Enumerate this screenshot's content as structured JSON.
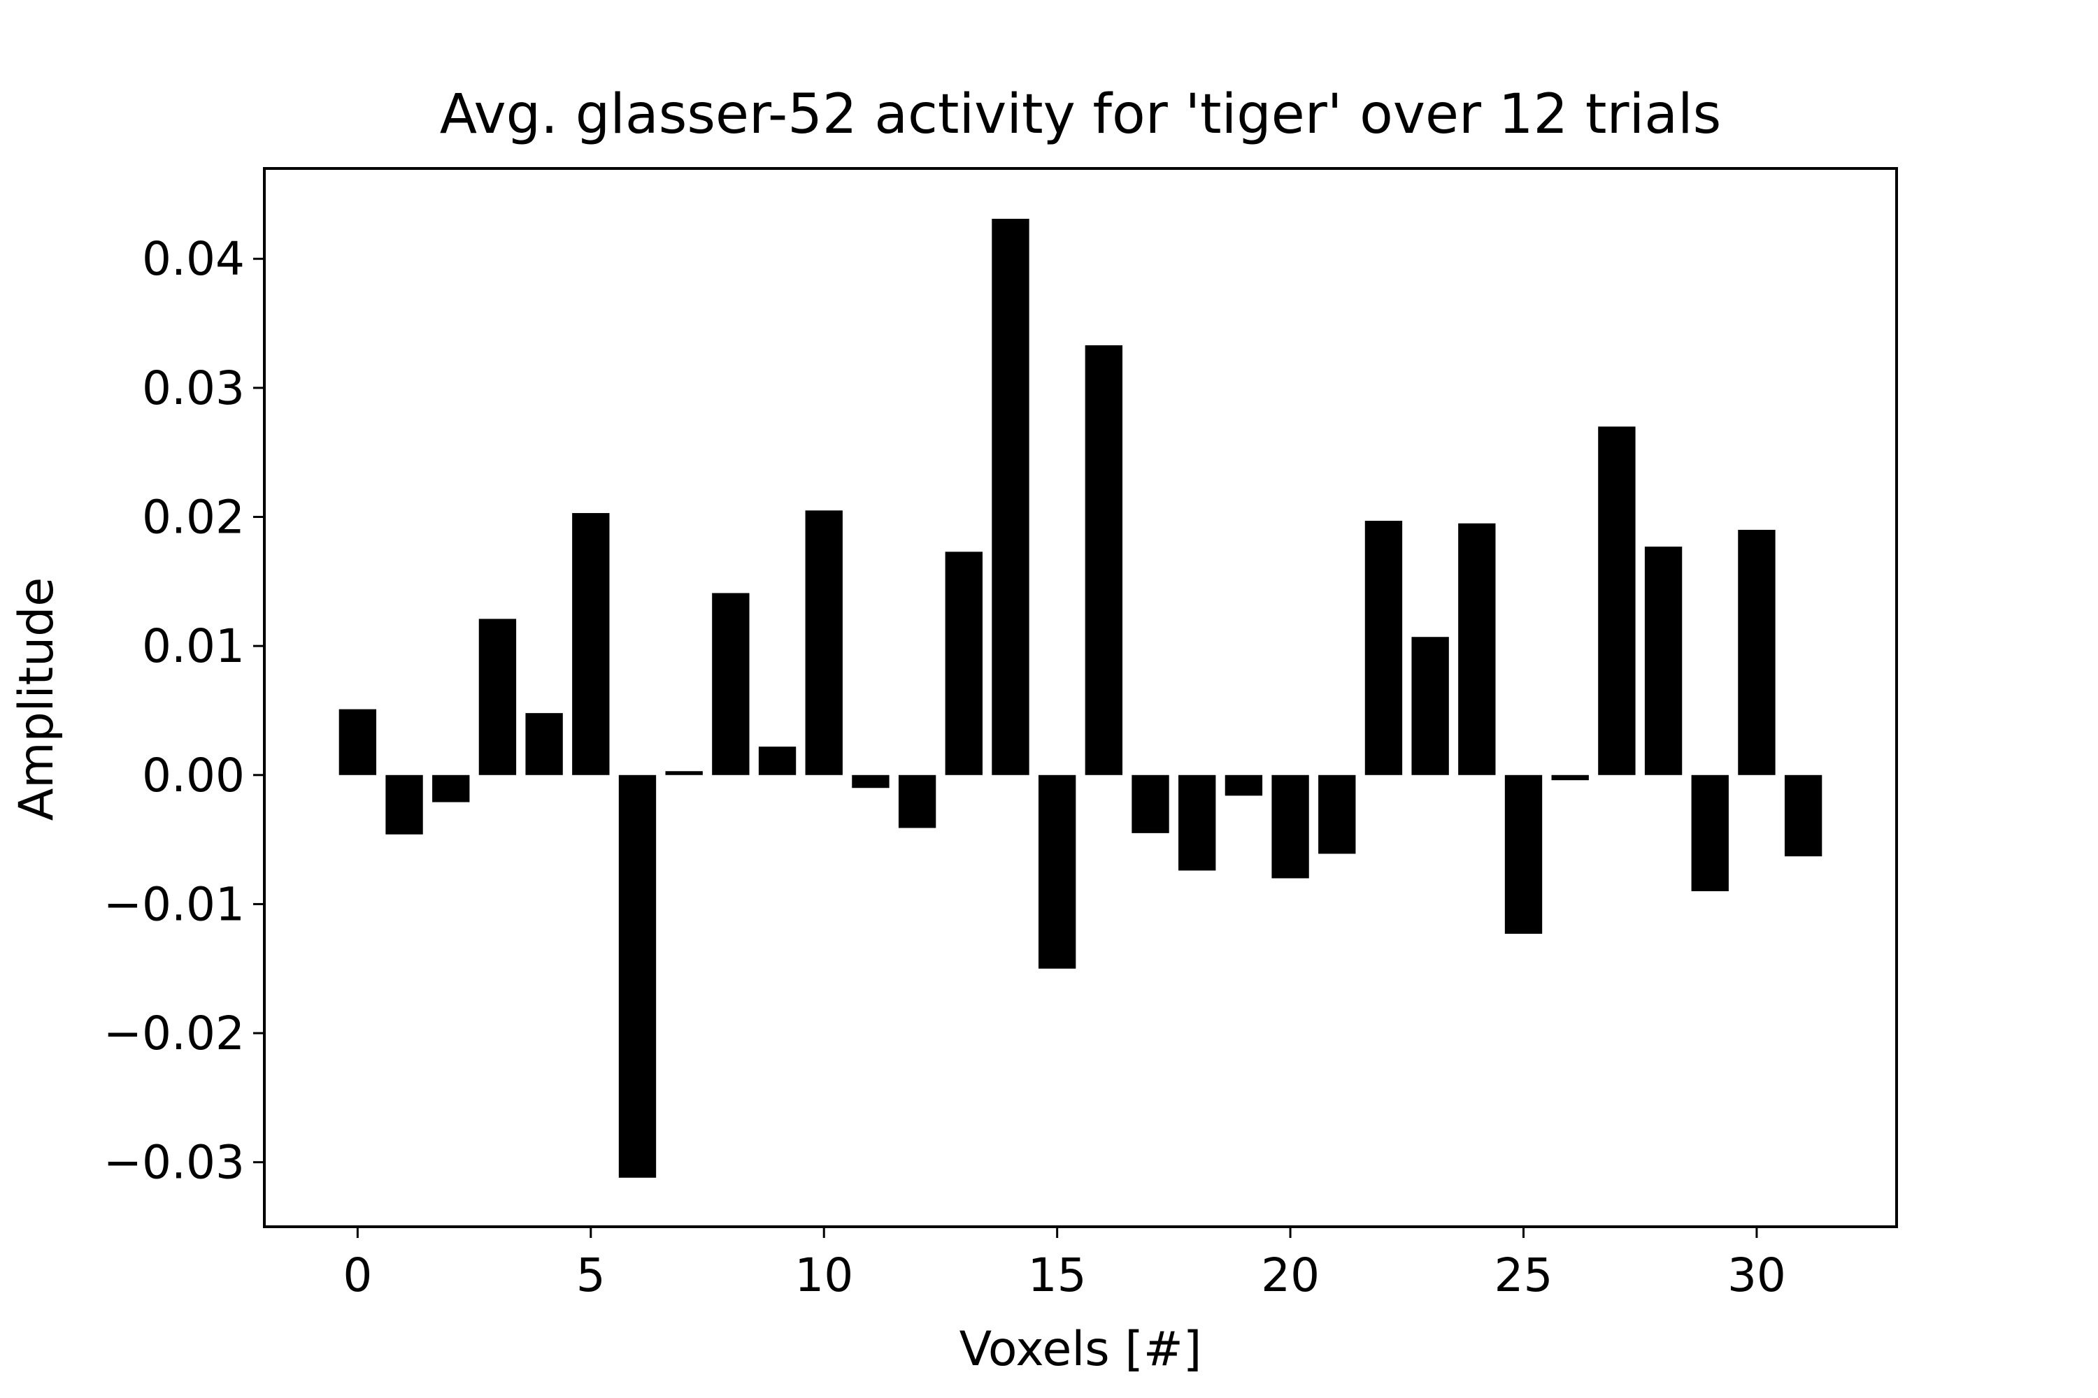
{
  "chart_data": {
    "type": "bar",
    "title": "Avg. glasser-52 activity for 'tiger' over 12 trials",
    "xlabel": "Voxels [#]",
    "ylabel": "Amplitude",
    "x": [
      0,
      1,
      2,
      3,
      4,
      5,
      6,
      7,
      8,
      9,
      10,
      11,
      12,
      13,
      14,
      15,
      16,
      17,
      18,
      19,
      20,
      21,
      22,
      23,
      24,
      25,
      26,
      27,
      28,
      29,
      30,
      31
    ],
    "values": [
      0.0051,
      -0.0046,
      -0.0021,
      0.0121,
      0.0048,
      0.0203,
      -0.0312,
      0.0003,
      0.0141,
      0.0022,
      0.0205,
      -0.001,
      -0.0041,
      0.0173,
      0.0431,
      -0.015,
      0.0333,
      -0.0045,
      -0.0074,
      -0.0016,
      -0.008,
      -0.0061,
      0.0197,
      0.0107,
      0.0195,
      -0.0123,
      -0.0004,
      0.027,
      0.0177,
      -0.009,
      0.019,
      -0.0063
    ],
    "xlim": [
      -2,
      33
    ],
    "ylim": [
      -0.035,
      0.047
    ],
    "xticks": [
      0,
      5,
      10,
      15,
      20,
      25,
      30
    ],
    "xtick_labels": [
      "0",
      "5",
      "10",
      "15",
      "20",
      "25",
      "30"
    ],
    "yticks": [
      -0.03,
      -0.02,
      -0.01,
      0.0,
      0.01,
      0.02,
      0.03,
      0.04
    ],
    "ytick_labels": [
      "−0.03",
      "−0.02",
      "−0.01",
      "0.00",
      "0.01",
      "0.02",
      "0.03",
      "0.04"
    ],
    "bar_color": "#000000",
    "grid": false,
    "legend": "none"
  }
}
